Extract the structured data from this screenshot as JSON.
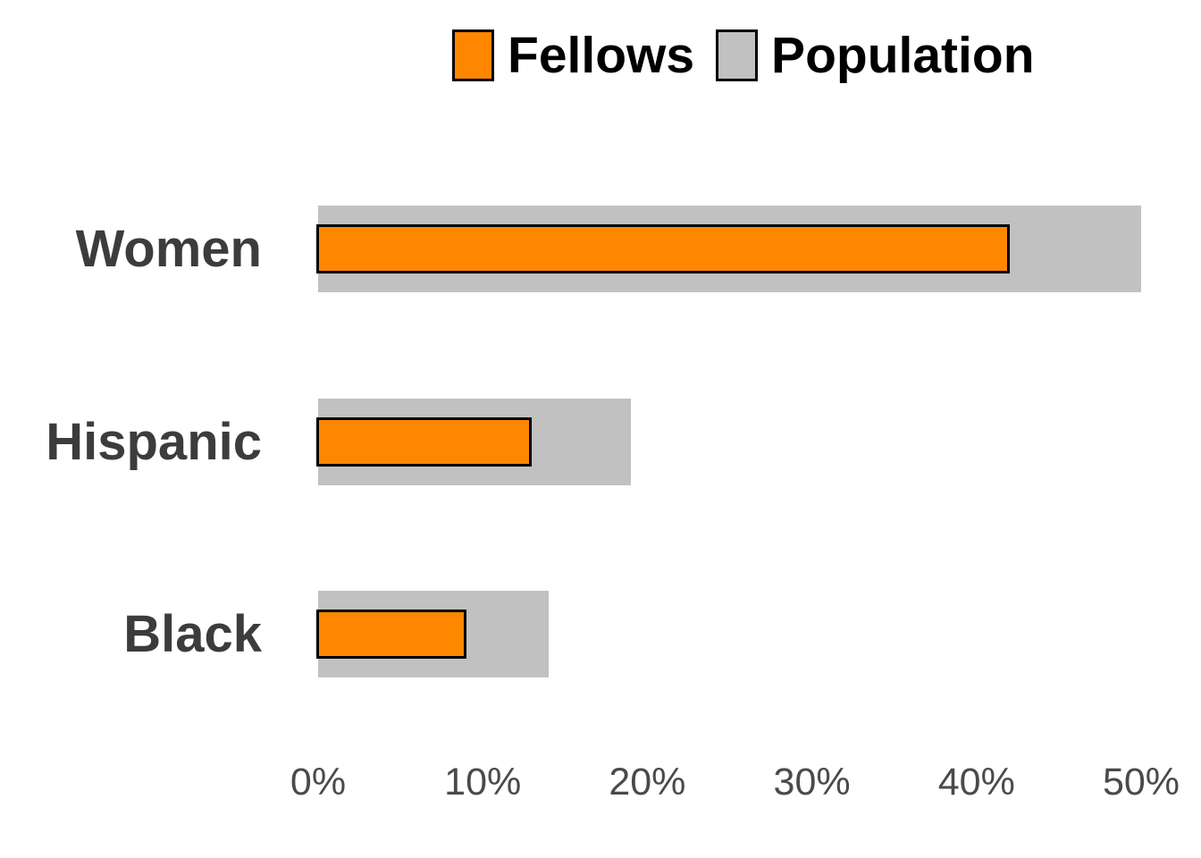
{
  "legend": {
    "items": [
      {
        "label": "Fellows",
        "color": "#FF8700"
      },
      {
        "label": "Population",
        "color": "#C1C1C1"
      }
    ]
  },
  "chart_data": {
    "type": "bar",
    "orientation": "horizontal",
    "title": "",
    "xlabel": "",
    "ylabel": "",
    "categories": [
      "Women",
      "Hispanic",
      "Black"
    ],
    "series": [
      {
        "name": "Fellows",
        "color": "#FF8700",
        "values": [
          42,
          13,
          9
        ]
      },
      {
        "name": "Population",
        "color": "#C1C1C1",
        "values": [
          50,
          19,
          14
        ]
      }
    ],
    "xlim": [
      0,
      50
    ],
    "x_tick_labels": [
      "0%",
      "10%",
      "20%",
      "30%",
      "40%",
      "50%"
    ],
    "x_tick_values": [
      0,
      10,
      20,
      30,
      40,
      50
    ],
    "grid": false,
    "legend_position": "top"
  },
  "colors": {
    "fellows_fill": "#FF8700",
    "population_fill": "#C1C1C1",
    "bar_border": "#000000",
    "category_label": "#3C3C3C",
    "axis_label": "#4A4A4A",
    "legend_label": "#000000",
    "background": "#FFFFFF"
  }
}
